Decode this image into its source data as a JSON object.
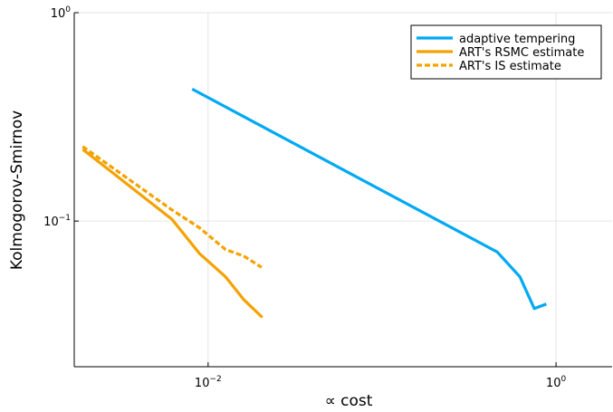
{
  "chart_data": {
    "type": "line",
    "title": "",
    "xlabel": "∝  cost",
    "ylabel": "Kolmogorov-Smirnov",
    "xscale": "log10",
    "yscale": "log10",
    "xlim": [
      0.0017,
      2.1
    ],
    "ylim": [
      0.02,
      1.0
    ],
    "grid": true,
    "legend_position": "top-right",
    "x_ticks": [
      {
        "value": 0.01,
        "base": "10",
        "exp": "−2"
      },
      {
        "value": 1,
        "base": "10",
        "exp": "0"
      }
    ],
    "y_ticks": [
      {
        "value": 0.1,
        "base": "10",
        "exp": "−1"
      },
      {
        "value": 1,
        "base": "10",
        "exp": "0"
      }
    ],
    "series": [
      {
        "name": "adaptive tempering",
        "color": "#00a9f4",
        "dash": "solid",
        "x": [
          0.0081,
          0.46,
          0.62,
          0.75,
          0.88
        ],
        "y": [
          0.43,
          0.071,
          0.054,
          0.038,
          0.04
        ]
      },
      {
        "name": "ART's RSMC estimate",
        "color": "#f5a200",
        "dash": "solid",
        "x": [
          0.0019,
          0.0062,
          0.0089,
          0.0126,
          0.016,
          0.0205
        ],
        "y": [
          0.221,
          0.102,
          0.07,
          0.054,
          0.042,
          0.0345
        ]
      },
      {
        "name": "ART's IS estimate",
        "color": "#f5a200",
        "dash": "dashed",
        "x": [
          0.0019,
          0.0062,
          0.0089,
          0.0126,
          0.016,
          0.0203
        ],
        "y": [
          0.228,
          0.113,
          0.093,
          0.073,
          0.068,
          0.06
        ]
      }
    ]
  }
}
